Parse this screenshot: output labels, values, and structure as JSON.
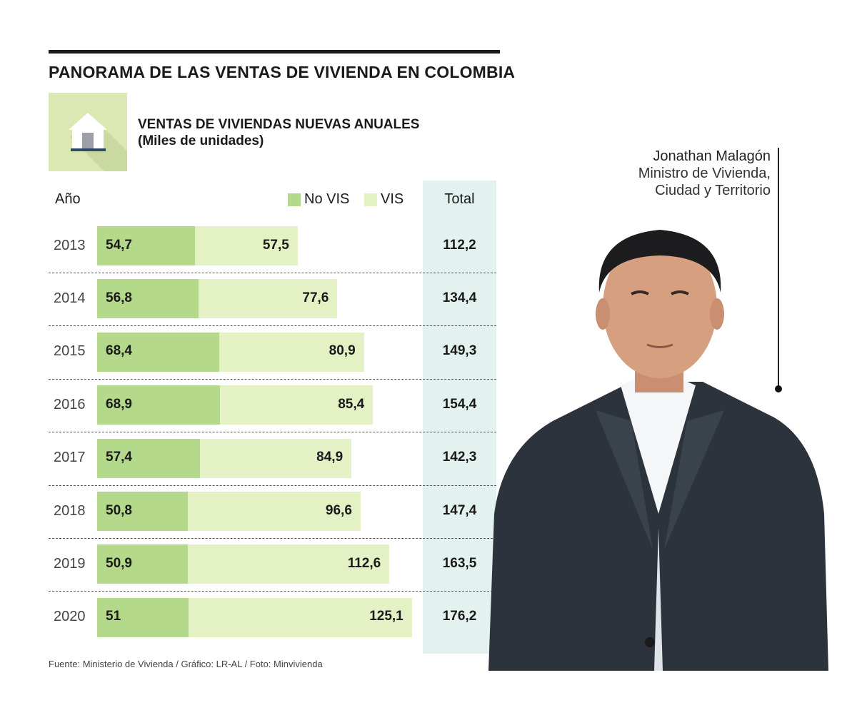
{
  "title": "PANORAMA DE LAS VENTAS DE VIVIENDA EN COLOMBIA",
  "subtitle_line1": "VENTAS DE VIVIENDAS NUEVAS ANUALES",
  "subtitle_line2": "(Miles de unidades)",
  "headers": {
    "year": "Año",
    "legend_novis": "No VIS",
    "legend_vis": "VIS",
    "total": "Total"
  },
  "colors": {
    "novis": "#b5d98b",
    "vis": "#e4f1c5",
    "total_bg": "#e3f2ef"
  },
  "person": {
    "name": "Jonathan Malagón",
    "role_line1": "Ministro de Vivienda,",
    "role_line2": "Ciudad y Territorio"
  },
  "source": "Fuente: Ministerio de Vivienda / Gráfico: LR-AL / Foto: Minvivienda",
  "icons": {
    "header_icon": "house-icon"
  },
  "chart_data": {
    "type": "bar",
    "orientation": "horizontal",
    "stacked": true,
    "categories": [
      "2013",
      "2014",
      "2015",
      "2016",
      "2017",
      "2018",
      "2019",
      "2020"
    ],
    "series": [
      {
        "name": "No VIS",
        "values": [
          54.7,
          56.8,
          68.4,
          68.9,
          57.4,
          50.8,
          50.9,
          51
        ],
        "labels": [
          "54,7",
          "56,8",
          "68,4",
          "68,9",
          "57,4",
          "50,8",
          "50,9",
          "51"
        ]
      },
      {
        "name": "VIS",
        "values": [
          57.5,
          77.6,
          80.9,
          85.4,
          84.9,
          96.6,
          112.6,
          125.1
        ],
        "labels": [
          "57,5",
          "77,6",
          "80,9",
          "85,4",
          "84,9",
          "96,6",
          "112,6",
          "125,1"
        ]
      }
    ],
    "totals": [
      112.2,
      134.4,
      149.3,
      154.4,
      142.3,
      147.4,
      163.5,
      176.2
    ],
    "total_labels": [
      "112,2",
      "134,4",
      "149,3",
      "154,4",
      "142,3",
      "147,4",
      "163,5",
      "176,2"
    ],
    "xlim": [
      0,
      176.2
    ]
  }
}
